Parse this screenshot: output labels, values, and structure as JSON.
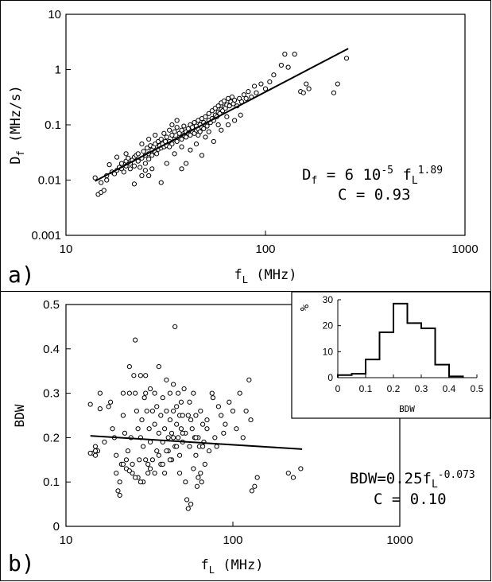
{
  "chart_data": [
    {
      "panel_label": "a)",
      "type": "scatter",
      "xscale": "log",
      "yscale": "log",
      "xlim": [
        10,
        1000
      ],
      "ylim": [
        0.001,
        10
      ],
      "xticks": [
        "10",
        "100",
        "1000"
      ],
      "yticks": [
        "0.001",
        "0.01",
        "0.1",
        "1",
        "10"
      ],
      "xlabel": {
        "base": "f",
        "sub": "L",
        "unit": " (MHz)"
      },
      "ylabel": {
        "base": "D",
        "sub": "f",
        "unit": " (MHz/s)"
      },
      "fit": {
        "x": [
          14,
          260
        ],
        "y": [
          0.0096,
          2.4
        ]
      },
      "equation": {
        "lhs": "D",
        "lhs_sub": "f",
        "mid": " = 6 10",
        "exp1": "-5",
        "var": " f",
        "var_sub": "L",
        "exp2": "1.89"
      },
      "correlation": "C = 0.93",
      "points": [
        [
          14,
          0.011
        ],
        [
          14.5,
          0.0055
        ],
        [
          15,
          0.006
        ],
        [
          15.5,
          0.0065
        ],
        [
          15,
          0.009
        ],
        [
          16,
          0.01
        ],
        [
          16,
          0.012
        ],
        [
          17,
          0.014
        ],
        [
          17.5,
          0.013
        ],
        [
          16.5,
          0.019
        ],
        [
          18,
          0.015
        ],
        [
          18.5,
          0.017
        ],
        [
          19,
          0.016
        ],
        [
          19,
          0.02
        ],
        [
          19.5,
          0.014
        ],
        [
          20,
          0.018
        ],
        [
          20,
          0.022
        ],
        [
          20.5,
          0.025
        ],
        [
          21,
          0.02
        ],
        [
          21,
          0.016
        ],
        [
          21.5,
          0.023
        ],
        [
          22,
          0.018
        ],
        [
          22,
          0.026
        ],
        [
          22.5,
          0.028
        ],
        [
          23,
          0.022
        ],
        [
          23,
          0.03
        ],
        [
          23.5,
          0.017
        ],
        [
          24,
          0.012
        ],
        [
          24,
          0.025
        ],
        [
          24.5,
          0.033
        ],
        [
          25,
          0.02
        ],
        [
          25,
          0.028
        ],
        [
          25.5,
          0.038
        ],
        [
          26,
          0.03
        ],
        [
          26,
          0.024
        ],
        [
          26.5,
          0.042
        ],
        [
          27,
          0.035
        ],
        [
          27,
          0.028
        ],
        [
          27.5,
          0.04
        ],
        [
          28,
          0.032
        ],
        [
          28,
          0.045
        ],
        [
          28.5,
          0.03
        ],
        [
          29,
          0.05
        ],
        [
          29,
          0.036
        ],
        [
          29.5,
          0.042
        ],
        [
          30,
          0.038
        ],
        [
          30,
          0.055
        ],
        [
          30.5,
          0.045
        ],
        [
          31,
          0.04
        ],
        [
          31,
          0.07
        ],
        [
          31.5,
          0.05
        ],
        [
          32,
          0.042
        ],
        [
          32,
          0.06
        ],
        [
          33,
          0.05
        ],
        [
          33,
          0.08
        ],
        [
          34,
          0.045
        ],
        [
          34,
          0.065
        ],
        [
          35,
          0.055
        ],
        [
          35,
          0.075
        ],
        [
          36,
          0.05
        ],
        [
          36,
          0.09
        ],
        [
          37,
          0.06
        ],
        [
          37,
          0.07
        ],
        [
          38,
          0.055
        ],
        [
          38,
          0.08
        ],
        [
          39,
          0.065
        ],
        [
          39,
          0.095
        ],
        [
          40,
          0.06
        ],
        [
          40,
          0.075
        ],
        [
          41,
          0.07
        ],
        [
          41,
          0.085
        ],
        [
          42,
          0.065
        ],
        [
          42,
          0.1
        ],
        [
          43,
          0.075
        ],
        [
          43,
          0.09
        ],
        [
          44,
          0.07
        ],
        [
          44,
          0.11
        ],
        [
          45,
          0.08
        ],
        [
          45,
          0.095
        ],
        [
          46,
          0.085
        ],
        [
          46,
          0.12
        ],
        [
          47,
          0.075
        ],
        [
          47,
          0.1
        ],
        [
          48,
          0.09
        ],
        [
          48,
          0.13
        ],
        [
          49,
          0.085
        ],
        [
          49,
          0.11
        ],
        [
          50,
          0.1
        ],
        [
          50,
          0.14
        ],
        [
          51,
          0.095
        ],
        [
          52,
          0.12
        ],
        [
          52,
          0.16
        ],
        [
          53,
          0.11
        ],
        [
          54,
          0.13
        ],
        [
          54,
          0.18
        ],
        [
          55,
          0.12
        ],
        [
          56,
          0.15
        ],
        [
          56,
          0.2
        ],
        [
          57,
          0.14
        ],
        [
          58,
          0.17
        ],
        [
          58,
          0.22
        ],
        [
          59,
          0.16
        ],
        [
          60,
          0.19
        ],
        [
          60,
          0.25
        ],
        [
          61,
          0.18
        ],
        [
          62,
          0.21
        ],
        [
          62,
          0.27
        ],
        [
          63,
          0.2
        ],
        [
          64,
          0.23
        ],
        [
          65,
          0.3
        ],
        [
          66,
          0.22
        ],
        [
          67,
          0.26
        ],
        [
          68,
          0.32
        ],
        [
          69,
          0.24
        ],
        [
          70,
          0.28
        ],
        [
          72,
          0.22
        ],
        [
          74,
          0.3
        ],
        [
          76,
          0.26
        ],
        [
          78,
          0.35
        ],
        [
          80,
          0.3
        ],
        [
          82,
          0.4
        ],
        [
          85,
          0.32
        ],
        [
          88,
          0.5
        ],
        [
          90,
          0.38
        ],
        [
          95,
          0.55
        ],
        [
          100,
          0.45
        ],
        [
          105,
          0.6
        ],
        [
          110,
          0.8
        ],
        [
          120,
          1.2
        ],
        [
          125,
          1.9
        ],
        [
          130,
          1.1
        ],
        [
          140,
          1.9
        ],
        [
          150,
          0.4
        ],
        [
          155,
          0.38
        ],
        [
          160,
          0.55
        ],
        [
          165,
          0.45
        ],
        [
          220,
          0.38
        ],
        [
          230,
          0.55
        ],
        [
          255,
          1.6
        ],
        [
          22,
          0.0085
        ],
        [
          25,
          0.015
        ],
        [
          26,
          0.012
        ],
        [
          27,
          0.016
        ],
        [
          32,
          0.02
        ],
        [
          35,
          0.03
        ],
        [
          38,
          0.04
        ],
        [
          40,
          0.02
        ],
        [
          42,
          0.035
        ],
        [
          45,
          0.045
        ],
        [
          50,
          0.06
        ],
        [
          55,
          0.05
        ],
        [
          60,
          0.08
        ],
        [
          65,
          0.1
        ],
        [
          70,
          0.12
        ],
        [
          75,
          0.15
        ],
        [
          38,
          0.016
        ],
        [
          48,
          0.028
        ],
        [
          30,
          0.009
        ],
        [
          34,
          0.1
        ],
        [
          36,
          0.12
        ],
        [
          46,
          0.065
        ],
        [
          52,
          0.075
        ],
        [
          58,
          0.1
        ],
        [
          64,
          0.14
        ],
        [
          18,
          0.026
        ],
        [
          20,
          0.03
        ],
        [
          24,
          0.045
        ],
        [
          26,
          0.055
        ],
        [
          28,
          0.065
        ],
        [
          33,
          0.04
        ]
      ]
    },
    {
      "panel_label": "b)",
      "type": "scatter",
      "xscale": "log",
      "yscale": "linear",
      "xlim": [
        10,
        1000
      ],
      "ylim": [
        0,
        0.5
      ],
      "xticks": [
        "10",
        "100",
        "1000"
      ],
      "yticks": [
        "0",
        "0.1",
        "0.2",
        "0.3",
        "0.4",
        "0.5"
      ],
      "xlabel": {
        "base": "f",
        "sub": "L",
        "unit": " (MHz)"
      },
      "ylabel": "BDW",
      "fit": {
        "x": [
          14,
          260
        ],
        "y": [
          0.204,
          0.174
        ]
      },
      "equation": {
        "lhs": "BDW=0.25f",
        "lhs_sub": "L",
        "exp": "-0.073"
      },
      "correlation": "C = 0.10",
      "points": [
        [
          14,
          0.275
        ],
        [
          14.5,
          0.165
        ],
        [
          15,
          0.16
        ],
        [
          15.5,
          0.17
        ],
        [
          15,
          0.18
        ],
        [
          16,
          0.3
        ],
        [
          16,
          0.265
        ],
        [
          17,
          0.19
        ],
        [
          18,
          0.27
        ],
        [
          18.5,
          0.28
        ],
        [
          19,
          0.22
        ],
        [
          19.5,
          0.2
        ],
        [
          20,
          0.16
        ],
        [
          20,
          0.12
        ],
        [
          20.5,
          0.08
        ],
        [
          21,
          0.07
        ],
        [
          21,
          0.1
        ],
        [
          21.5,
          0.14
        ],
        [
          22,
          0.3
        ],
        [
          22,
          0.25
        ],
        [
          22.5,
          0.21
        ],
        [
          23,
          0.15
        ],
        [
          23,
          0.13
        ],
        [
          23.5,
          0.17
        ],
        [
          24,
          0.36
        ],
        [
          24,
          0.3
        ],
        [
          24.5,
          0.2
        ],
        [
          25,
          0.12
        ],
        [
          25,
          0.14
        ],
        [
          25.5,
          0.34
        ],
        [
          26,
          0.42
        ],
        [
          26,
          0.3
        ],
        [
          26.5,
          0.26
        ],
        [
          27,
          0.22
        ],
        [
          27,
          0.11
        ],
        [
          27.5,
          0.15
        ],
        [
          28,
          0.34
        ],
        [
          28,
          0.2
        ],
        [
          28.5,
          0.24
        ],
        [
          29,
          0.18
        ],
        [
          29,
          0.1
        ],
        [
          29.5,
          0.29
        ],
        [
          30,
          0.34
        ],
        [
          30,
          0.3
        ],
        [
          30.5,
          0.26
        ],
        [
          31,
          0.14
        ],
        [
          31,
          0.12
        ],
        [
          31.5,
          0.22
        ],
        [
          32,
          0.31
        ],
        [
          32,
          0.19
        ],
        [
          33,
          0.26
        ],
        [
          33,
          0.15
        ],
        [
          34,
          0.23
        ],
        [
          34,
          0.3
        ],
        [
          35,
          0.17
        ],
        [
          35,
          0.27
        ],
        [
          36,
          0.36
        ],
        [
          36,
          0.21
        ],
        [
          37,
          0.25
        ],
        [
          37,
          0.14
        ],
        [
          38,
          0.19
        ],
        [
          38,
          0.29
        ],
        [
          39,
          0.22
        ],
        [
          39,
          0.12
        ],
        [
          40,
          0.26
        ],
        [
          40,
          0.33
        ],
        [
          41,
          0.2
        ],
        [
          41,
          0.17
        ],
        [
          42,
          0.24
        ],
        [
          42,
          0.3
        ],
        [
          43,
          0.15
        ],
        [
          43,
          0.21
        ],
        [
          44,
          0.26
        ],
        [
          44,
          0.32
        ],
        [
          45,
          0.18
        ],
        [
          45,
          0.45
        ],
        [
          46,
          0.23
        ],
        [
          46,
          0.27
        ],
        [
          47,
          0.2
        ],
        [
          47,
          0.3
        ],
        [
          48,
          0.25
        ],
        [
          48,
          0.16
        ],
        [
          49,
          0.22
        ],
        [
          49,
          0.28
        ],
        [
          50,
          0.19
        ],
        [
          50,
          0.25
        ],
        [
          51,
          0.31
        ],
        [
          52,
          0.1
        ],
        [
          52,
          0.21
        ],
        [
          53,
          0.06
        ],
        [
          54,
          0.04
        ],
        [
          54,
          0.25
        ],
        [
          55,
          0.28
        ],
        [
          55,
          0.18
        ],
        [
          56,
          0.05
        ],
        [
          57,
          0.22
        ],
        [
          58,
          0.13
        ],
        [
          58,
          0.3
        ],
        [
          59,
          0.2
        ],
        [
          60,
          0.16
        ],
        [
          60,
          0.25
        ],
        [
          61,
          0.09
        ],
        [
          62,
          0.11
        ],
        [
          62,
          0.2
        ],
        [
          63,
          0.18
        ],
        [
          64,
          0.12
        ],
        [
          64,
          0.26
        ],
        [
          65,
          0.1
        ],
        [
          66,
          0.23
        ],
        [
          67,
          0.19
        ],
        [
          68,
          0.14
        ],
        [
          70,
          0.22
        ],
        [
          72,
          0.17
        ],
        [
          75,
          0.3
        ],
        [
          78,
          0.2
        ],
        [
          80,
          0.18
        ],
        [
          85,
          0.25
        ],
        [
          90,
          0.23
        ],
        [
          95,
          0.28
        ],
        [
          100,
          0.26
        ],
        [
          105,
          0.22
        ],
        [
          110,
          0.3
        ],
        [
          115,
          0.2
        ],
        [
          120,
          0.26
        ],
        [
          125,
          0.33
        ],
        [
          128,
          0.24
        ],
        [
          130,
          0.08
        ],
        [
          135,
          0.09
        ],
        [
          140,
          0.11
        ],
        [
          215,
          0.12
        ],
        [
          230,
          0.11
        ],
        [
          255,
          0.13
        ],
        [
          14,
          0.165
        ],
        [
          15,
          0.17
        ],
        [
          22,
          0.14
        ],
        [
          24,
          0.125
        ],
        [
          26,
          0.11
        ],
        [
          28,
          0.1
        ],
        [
          30,
          0.15
        ],
        [
          32,
          0.13
        ],
        [
          34,
          0.12
        ],
        [
          36,
          0.16
        ],
        [
          38,
          0.14
        ],
        [
          40,
          0.17
        ],
        [
          42,
          0.15
        ],
        [
          44,
          0.2
        ],
        [
          46,
          0.18
        ],
        [
          48,
          0.12
        ],
        [
          50,
          0.21
        ],
        [
          56,
          0.24
        ],
        [
          60,
          0.2
        ],
        [
          66,
          0.18
        ],
        [
          70,
          0.24
        ],
        [
          76,
          0.29
        ],
        [
          82,
          0.27
        ],
        [
          88,
          0.21
        ]
      ],
      "inset": {
        "type": "histogram",
        "ylabel": "%",
        "xlabel": "BDW",
        "xlim": [
          0,
          0.5
        ],
        "ylim": [
          0,
          30
        ],
        "xticks": [
          "0",
          "0.1",
          "0.2",
          "0.3",
          "0.4",
          "0.5"
        ],
        "yticks": [
          "0",
          "10",
          "20",
          "30"
        ],
        "bins": [
          0,
          0.05,
          0.1,
          0.15,
          0.2,
          0.25,
          0.3,
          0.35,
          0.4,
          0.45
        ],
        "values": [
          1,
          1.5,
          7,
          17.5,
          28.5,
          21,
          19,
          5,
          0.5
        ]
      }
    }
  ]
}
